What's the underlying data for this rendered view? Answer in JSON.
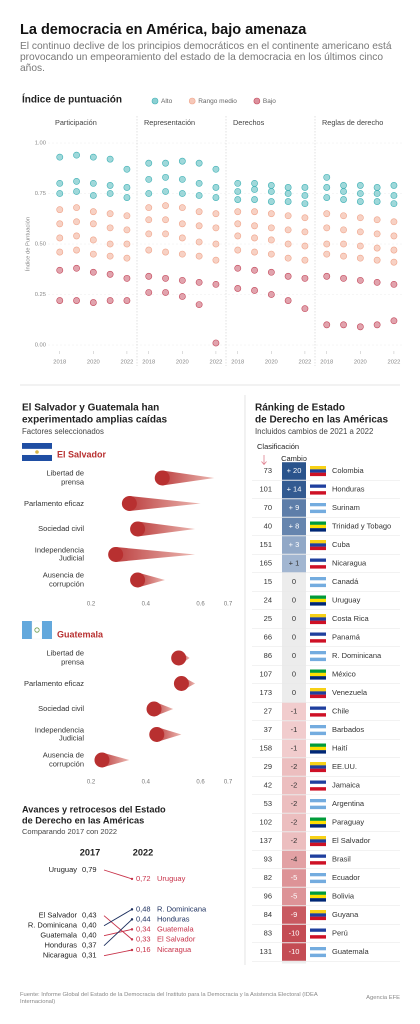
{
  "header": {
    "title": "La democracia en América, bajo amenaza",
    "subtitle": "El continuo declive de los principios democráticos en el continente americano está provocando un empeoramiento del estado de la democracia en los últimos cinco años."
  },
  "chart_data": [
    {
      "type": "scatter",
      "title": "Índice de puntuación",
      "y_label": "Índice de Puntuación",
      "x": [
        2018,
        2019,
        2020,
        2021,
        2022
      ],
      "xlim": [
        2017.3,
        2022.6
      ],
      "xticks": [
        2018,
        2020,
        2022
      ],
      "ylim": [
        0,
        1
      ],
      "yticks": [
        {
          "value": 0,
          "label": "0.00"
        },
        {
          "value": 0.25,
          "label": "0.25"
        },
        {
          "value": 0.5,
          "label": "0.50"
        },
        {
          "value": 0.75,
          "label": "0.75"
        },
        {
          "value": 1,
          "label": "1.00"
        }
      ],
      "grid": true,
      "series": [
        {
          "name": "Alto",
          "color": "#3fb1b5"
        },
        {
          "name": "Rango medio",
          "color": "#f0a48a"
        },
        {
          "name": "Bajo",
          "color": "#c4485b"
        }
      ],
      "panels": [
        {
          "title": "Participación",
          "values": [
            [
              [
                0.93,
                0.8,
                0.75
              ],
              [
                0.94,
                0.81,
                0.76
              ],
              [
                0.93,
                0.8,
                0.74
              ],
              [
                0.92,
                0.79,
                0.75
              ],
              [
                0.87,
                0.78,
                0.73
              ]
            ],
            [
              [
                0.67,
                0.6,
                0.53,
                0.46
              ],
              [
                0.68,
                0.61,
                0.54,
                0.47
              ],
              [
                0.66,
                0.6,
                0.52,
                0.45
              ],
              [
                0.65,
                0.58,
                0.5,
                0.44
              ],
              [
                0.64,
                0.57,
                0.5,
                0.43
              ]
            ],
            [
              [
                0.37,
                0.22
              ],
              [
                0.38,
                0.22
              ],
              [
                0.36,
                0.21
              ],
              [
                0.35,
                0.22
              ],
              [
                0.33,
                0.22
              ]
            ]
          ]
        },
        {
          "title": "Representación",
          "values": [
            [
              [
                0.9,
                0.82,
                0.75
              ],
              [
                0.9,
                0.83,
                0.76
              ],
              [
                0.91,
                0.82,
                0.75
              ],
              [
                0.9,
                0.8,
                0.74
              ],
              [
                0.87,
                0.78,
                0.73
              ]
            ],
            [
              [
                0.68,
                0.62,
                0.55,
                0.47
              ],
              [
                0.69,
                0.62,
                0.55,
                0.46
              ],
              [
                0.68,
                0.6,
                0.53,
                0.45
              ],
              [
                0.66,
                0.59,
                0.51,
                0.44
              ],
              [
                0.65,
                0.58,
                0.5,
                0.42
              ]
            ],
            [
              [
                0.34,
                0.26
              ],
              [
                0.33,
                0.26
              ],
              [
                0.32,
                0.24
              ],
              [
                0.31,
                0.2
              ],
              [
                0.3,
                0.01
              ]
            ]
          ]
        },
        {
          "title": "Derechos",
          "values": [
            [
              [
                0.8,
                0.76,
                0.72
              ],
              [
                0.8,
                0.77,
                0.72
              ],
              [
                0.79,
                0.76,
                0.71
              ],
              [
                0.78,
                0.75,
                0.71
              ],
              [
                0.78,
                0.74,
                0.7
              ]
            ],
            [
              [
                0.66,
                0.6,
                0.54,
                0.47
              ],
              [
                0.66,
                0.59,
                0.53,
                0.46
              ],
              [
                0.65,
                0.58,
                0.52,
                0.45
              ],
              [
                0.64,
                0.57,
                0.5,
                0.43
              ],
              [
                0.63,
                0.56,
                0.49,
                0.42
              ]
            ],
            [
              [
                0.38,
                0.28
              ],
              [
                0.37,
                0.27
              ],
              [
                0.36,
                0.25
              ],
              [
                0.34,
                0.22
              ],
              [
                0.33,
                0.18
              ]
            ]
          ]
        },
        {
          "title": "Reglas de derecho",
          "values": [
            [
              [
                0.83,
                0.78,
                0.73
              ],
              [
                0.79,
                0.76,
                0.72
              ],
              [
                0.79,
                0.75,
                0.71
              ],
              [
                0.78,
                0.75,
                0.71
              ],
              [
                0.79,
                0.74,
                0.7
              ]
            ],
            [
              [
                0.65,
                0.58,
                0.5,
                0.45
              ],
              [
                0.64,
                0.57,
                0.5,
                0.44
              ],
              [
                0.63,
                0.56,
                0.49,
                0.43
              ],
              [
                0.62,
                0.55,
                0.48,
                0.42
              ],
              [
                0.61,
                0.54,
                0.47,
                0.41
              ]
            ],
            [
              [
                0.34,
                0.1
              ],
              [
                0.33,
                0.1
              ],
              [
                0.32,
                0.09
              ],
              [
                0.31,
                0.1
              ],
              [
                0.3,
                0.12
              ]
            ]
          ]
        }
      ]
    },
    {
      "type": "comet",
      "title": [
        "El Salvador y Guatemala han",
        "experimentado amplias caídas"
      ],
      "subtitle": "Factores seleccionados",
      "categories": [
        "Libertad de prensa",
        "Parlamento eficaz",
        "Sociedad civil",
        "Independencia Judicial",
        "Ausencia de corrupción"
      ],
      "xlim": [
        0.2,
        0.7
      ],
      "xticks": [
        0.2,
        0.4,
        0.6,
        0.7
      ],
      "color": "#b83030",
      "panels": [
        {
          "name": "El Salvador",
          "from": [
            0.65,
            0.6,
            0.58,
            0.58,
            0.47
          ],
          "to": [
            0.46,
            0.34,
            0.37,
            0.29,
            0.37
          ]
        },
        {
          "name": "Guatemala",
          "from": [
            0.56,
            0.58,
            0.5,
            0.53,
            0.34
          ],
          "to": [
            0.52,
            0.53,
            0.43,
            0.44,
            0.24
          ]
        }
      ]
    },
    {
      "type": "slope",
      "title": [
        "Avances y retrocesos del Estado",
        "de Derecho en las Américas"
      ],
      "subtitle": "Comparando 2017 con 2022",
      "categories": [
        "Uruguay",
        "El Salvador",
        "R. Dominicana",
        "Guatemala",
        "Honduras",
        "Nicaragua"
      ],
      "series": [
        {
          "name": "2017",
          "values": [
            0.79,
            0.43,
            0.4,
            0.4,
            0.37,
            0.31
          ],
          "value_labels": [
            "0,79",
            "0,43",
            "0,40",
            "0,40",
            "0,37",
            "0,31"
          ]
        },
        {
          "name": "2022",
          "values": [
            0.72,
            0.33,
            0.48,
            0.34,
            0.44,
            0.16
          ],
          "value_labels": [
            "0,72",
            "0,33",
            "0,48",
            "0,34",
            "0,44",
            "0,16"
          ]
        }
      ],
      "up_color": "#1c2f5e",
      "down_color": "#c8334a"
    }
  ],
  "ranking": {
    "title": [
      "Ránking de Estado",
      "de Derecho en las Américas"
    ],
    "subtitle": "Incluidos cambios de 2021 a 2022",
    "columns": [
      "Clasificación",
      "Cambio"
    ],
    "rows": [
      [
        73,
        "+ 20",
        "Colombia"
      ],
      [
        101,
        "+ 14",
        "Honduras"
      ],
      [
        70,
        "+ 9",
        "Surinam"
      ],
      [
        40,
        "+ 8",
        "Trinidad y Tobago"
      ],
      [
        151,
        "+ 3",
        "Cuba"
      ],
      [
        165,
        "+ 1",
        "Nicaragua"
      ],
      [
        15,
        "0",
        "Canadá"
      ],
      [
        24,
        "0",
        "Uruguay"
      ],
      [
        25,
        "0",
        "Costa Rica"
      ],
      [
        66,
        "0",
        "Panamá"
      ],
      [
        86,
        "0",
        "R. Dominicana"
      ],
      [
        107,
        "0",
        "México"
      ],
      [
        173,
        "0",
        "Venezuela"
      ],
      [
        27,
        "-1",
        "Chile"
      ],
      [
        37,
        "-1",
        "Barbados"
      ],
      [
        158,
        "-1",
        "Haití"
      ],
      [
        29,
        "-2",
        "EE.UU."
      ],
      [
        42,
        "-2",
        "Jamaica"
      ],
      [
        53,
        "-2",
        "Argentina"
      ],
      [
        102,
        "-2",
        "Paraguay"
      ],
      [
        137,
        "-2",
        "El Salvador"
      ],
      [
        93,
        "-4",
        "Brasil"
      ],
      [
        82,
        "-5",
        "Ecuador"
      ],
      [
        96,
        "-5",
        "Bolivia"
      ],
      [
        84,
        "-9",
        "Guyana"
      ],
      [
        83,
        "-10",
        "Perú"
      ],
      [
        131,
        "-10",
        "Guatemala"
      ]
    ]
  },
  "footer": {
    "source": "Fuente: Informe Global del Estado de la Democracia del Instituto para la Democracia y la Asistencia Electoral (IDEA Internacional)",
    "credit": "Agencia EFE"
  }
}
